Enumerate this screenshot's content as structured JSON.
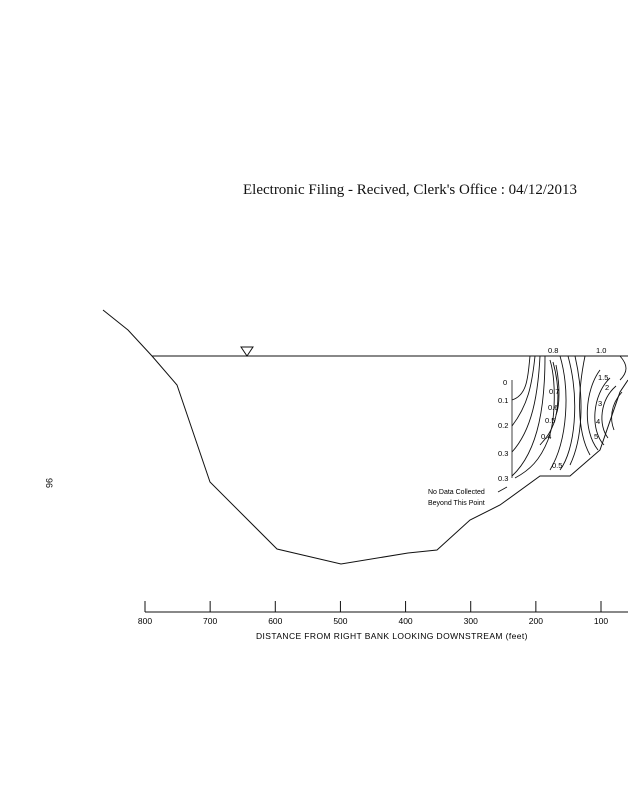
{
  "header": {
    "filing_stamp": "Electronic Filing - Recived, Clerk's Office :  04/12/2013"
  },
  "page": {
    "number": "96"
  },
  "chart_data": {
    "type": "cross-section",
    "xlabel": "DISTANCE FROM RIGHT BANK LOOKING DOWNSTREAM (feet)",
    "x_ticks": [
      "800",
      "700",
      "600",
      "500",
      "400",
      "300",
      "200",
      "100"
    ],
    "xlim": [
      800,
      80
    ],
    "left_depth_labels": [
      "0",
      "0.1",
      "0.2",
      "0.3",
      "0.3"
    ],
    "contour_labels": [
      "0.8",
      "1.0",
      "0.7",
      "0.6",
      "0.5",
      "0.4",
      "0.5",
      "1.5",
      "2",
      "3",
      "4",
      "5"
    ],
    "annotation": {
      "line1": "No Data Collected",
      "line2": "Beyond This Point"
    },
    "water_surface_symbol": "inverted-triangle"
  }
}
